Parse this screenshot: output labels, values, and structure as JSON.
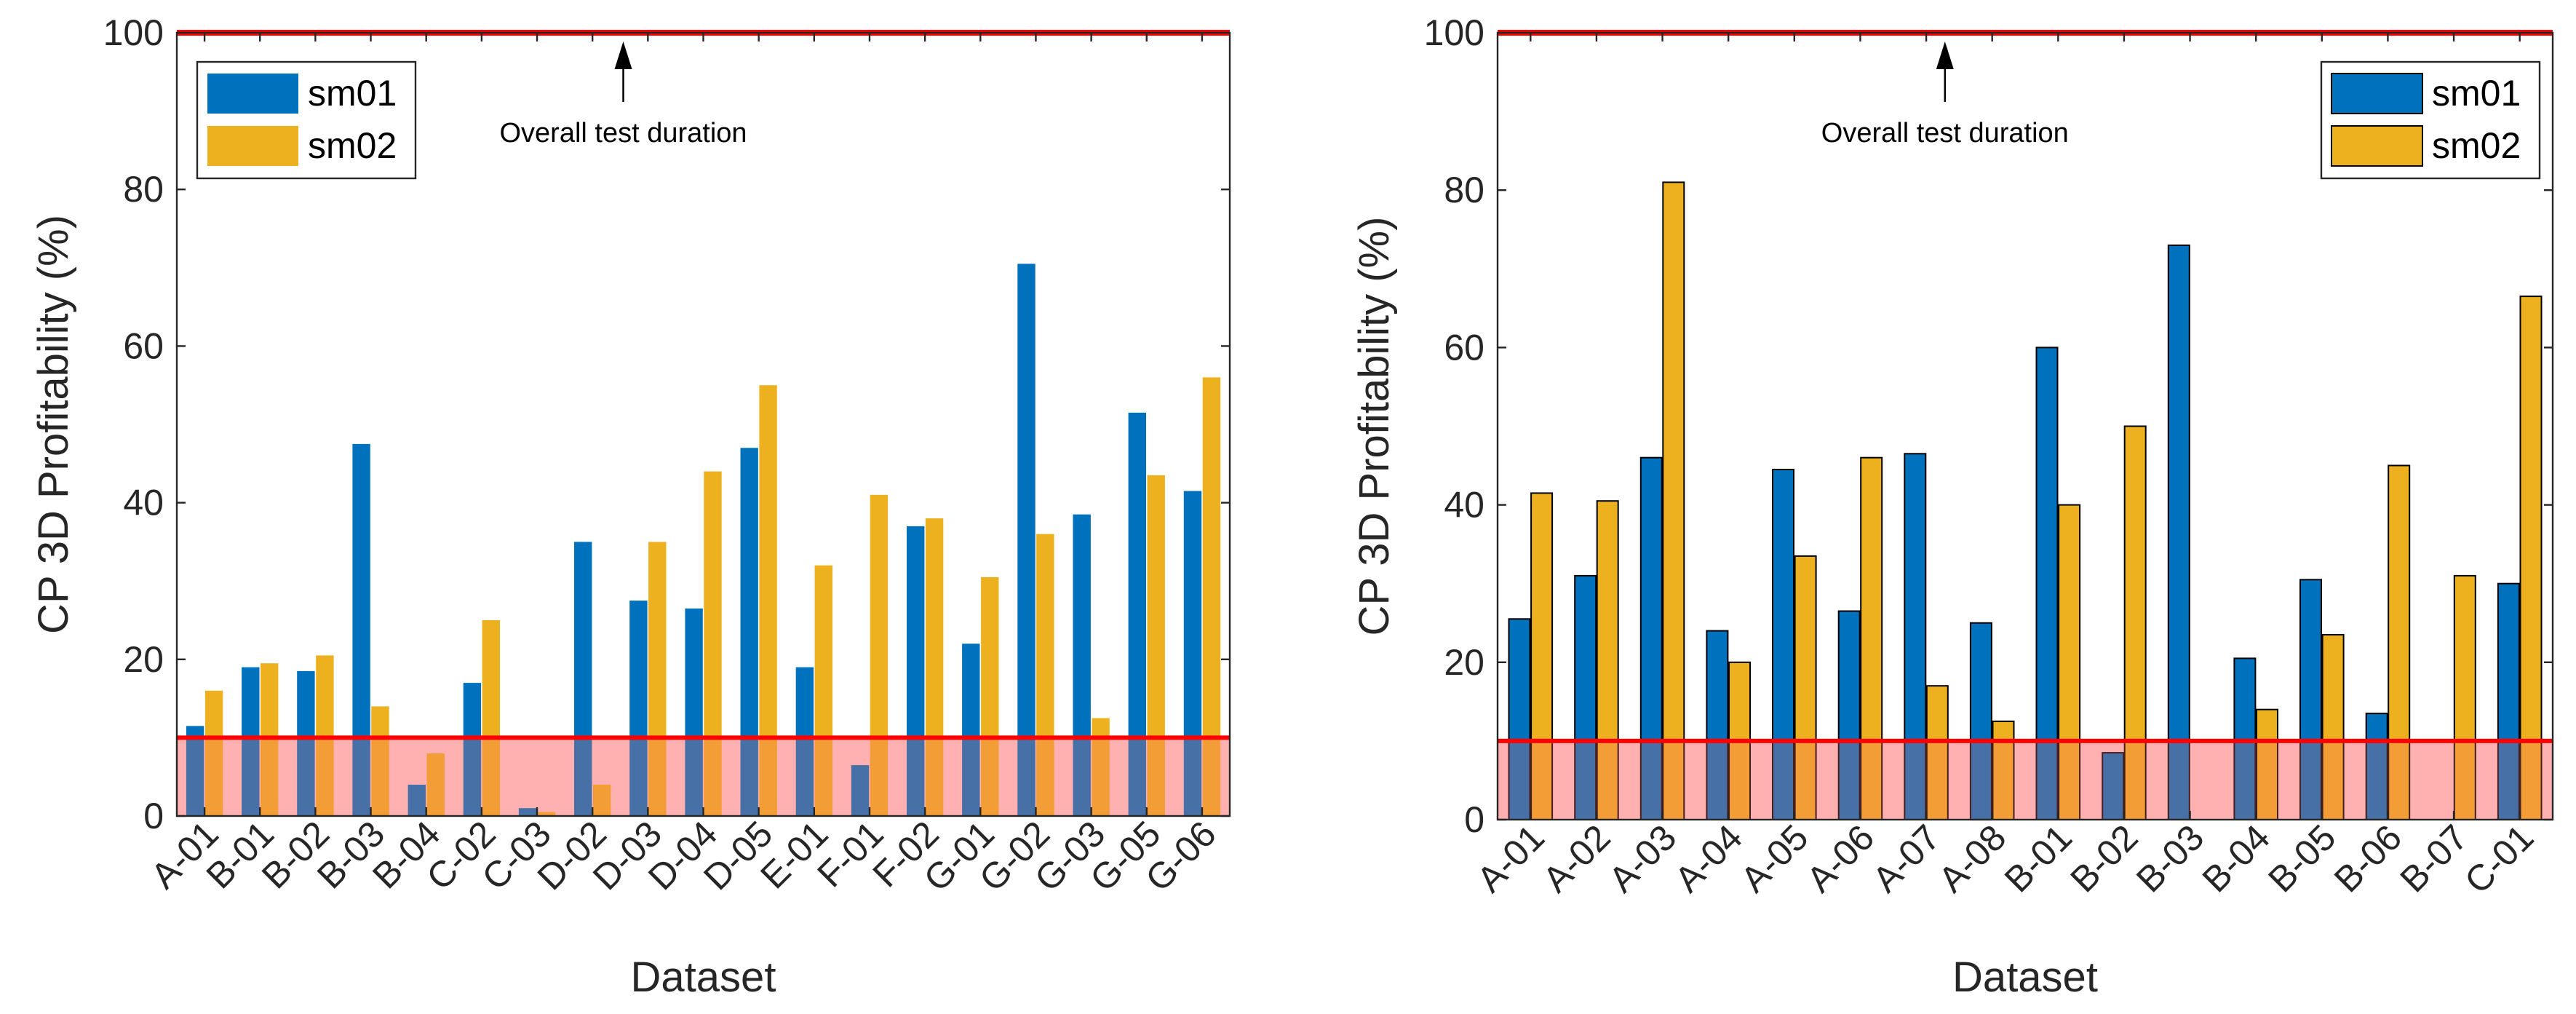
{
  "chart_data": [
    {
      "type": "bar",
      "categories": [
        "A-01",
        "B-01",
        "B-02",
        "B-03",
        "B-04",
        "C-02",
        "C-03",
        "D-02",
        "D-03",
        "D-04",
        "D-05",
        "E-01",
        "F-01",
        "F-02",
        "G-01",
        "G-02",
        "G-03",
        "G-05",
        "G-06"
      ],
      "series": [
        {
          "name": "sm01",
          "color": "#0072BD",
          "values": [
            11.5,
            19,
            18.5,
            47.5,
            4,
            17,
            1,
            35,
            27.5,
            26.5,
            47,
            19,
            6.5,
            37,
            22,
            70.5,
            38.5,
            51.5,
            41.5
          ]
        },
        {
          "name": "sm02",
          "color": "#EDB120",
          "values": [
            16,
            19.5,
            20.5,
            14,
            8,
            25,
            0.5,
            4,
            35,
            44,
            55,
            32,
            41,
            38,
            30.5,
            36,
            12.5,
            43.5,
            56
          ]
        }
      ],
      "bar_edges": false,
      "xlabel": "Dataset",
      "ylabel": "CP 3D Profitability (%)",
      "ylim": [
        0,
        100
      ],
      "yticks": [
        0,
        20,
        40,
        60,
        80,
        100
      ],
      "threshold": {
        "value": 10,
        "color": "#ff0000",
        "shade": "#ffcccc"
      },
      "top_line": {
        "value": 100,
        "color": "#ff0000"
      },
      "annotation": {
        "text": "Overall test duration",
        "arrow_target": 100
      },
      "legend": {
        "position": "top-left",
        "entries": [
          "sm01",
          "sm02"
        ]
      }
    },
    {
      "type": "bar",
      "categories": [
        "A-01",
        "A-02",
        "A-03",
        "A-04",
        "A-05",
        "A-06",
        "A-07",
        "A-08",
        "B-01",
        "B-02",
        "B-03",
        "B-04",
        "B-05",
        "B-06",
        "B-07",
        "C-01"
      ],
      "series": [
        {
          "name": "sm01",
          "color": "#0072BD",
          "values": [
            25.5,
            31,
            46,
            24,
            44.5,
            26.5,
            46.5,
            25,
            60,
            8.5,
            73,
            20.5,
            30.5,
            13.5,
            0,
            30
          ]
        },
        {
          "name": "sm02",
          "color": "#EDB120",
          "values": [
            41.5,
            40.5,
            81,
            20,
            33.5,
            46,
            17,
            12.5,
            40,
            50,
            0,
            14,
            23.5,
            45,
            31,
            66.5
          ]
        }
      ],
      "bar_edges": true,
      "xlabel": "Dataset",
      "ylabel": "CP 3D Profitability (%)",
      "ylim": [
        0,
        100
      ],
      "yticks": [
        0,
        20,
        40,
        60,
        80,
        100
      ],
      "threshold": {
        "value": 10,
        "color": "#ff0000",
        "shade": "#ffcccc"
      },
      "top_line": {
        "value": 100,
        "color": "#ff0000"
      },
      "annotation": {
        "text": "Overall test duration",
        "arrow_target": 100
      },
      "legend": {
        "position": "top-right",
        "entries": [
          "sm01",
          "sm02"
        ]
      }
    }
  ]
}
